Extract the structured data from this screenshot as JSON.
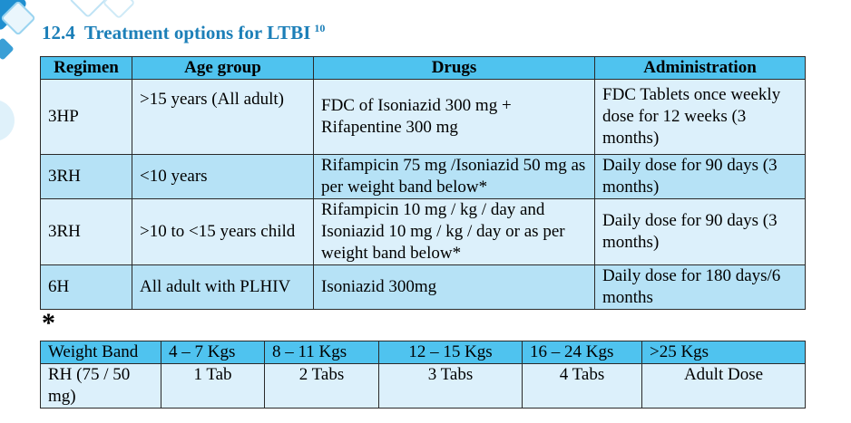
{
  "section": {
    "number": "12.4",
    "title": "Treatment options for LTBI",
    "reference": "10"
  },
  "treatment_table": {
    "headers": [
      "Regimen",
      "Age group",
      "Drugs",
      "Administration"
    ],
    "rows": [
      {
        "regimen": "3HP",
        "age_group": ">15 years (All adult)",
        "drugs": "FDC of Isoniazid 300 mg + Rifapentine 300 mg",
        "administration": "FDC Tablets once weekly dose for 12 weeks (3 months)"
      },
      {
        "regimen": "3RH",
        "age_group": "<10 years",
        "drugs": "Rifampicin 75 mg /Isoniazid 50 mg as per weight band below*",
        "administration": "Daily dose for 90 days (3 months)"
      },
      {
        "regimen": "3RH",
        "age_group": ">10 to <15 years child",
        "drugs": "Rifampicin 10 mg / kg / day and Isoniazid 10 mg / kg / day or as per weight band below*",
        "administration": "Daily dose for 90 days (3 months)"
      },
      {
        "regimen": "6H",
        "age_group": "All adult with PLHIV",
        "drugs": "Isoniazid 300mg",
        "administration": "Daily dose for 180 days/6 months"
      }
    ]
  },
  "footnote_marker": "*",
  "weight_band_table": {
    "header_label": "Weight Band",
    "bands": [
      "4 – 7 Kgs",
      "8 – 11 Kgs",
      "12 – 15 Kgs",
      "16 – 24 Kgs",
      ">25 Kgs"
    ],
    "row_label": "RH (75 / 50 mg)",
    "doses": [
      "1 Tab",
      "2 Tabs",
      "3 Tabs",
      "4 Tabs",
      "Adult Dose"
    ]
  },
  "colors": {
    "heading": "#1c7fb8",
    "header_fill": "#4fc3ef",
    "row_light": "#dcf0fb",
    "row_mid": "#b6e2f6"
  }
}
